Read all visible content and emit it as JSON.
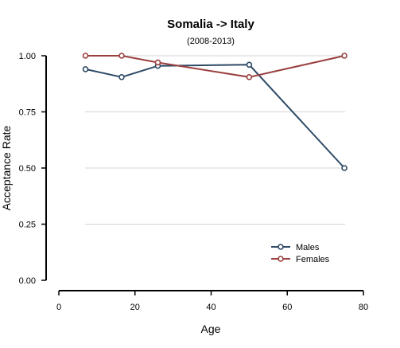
{
  "chart_data": {
    "type": "line",
    "title": "Somalia  -> Italy",
    "subtitle": "(2008-2013)",
    "xlabel": "Age",
    "ylabel": "Acceptance Rate",
    "xlim": [
      0,
      80
    ],
    "ylim": [
      0,
      1
    ],
    "xticks": [
      "0",
      "20",
      "40",
      "60",
      "80"
    ],
    "yticks": [
      "0.00",
      "0.25",
      "0.50",
      "0.75",
      "1.00"
    ],
    "grid": "horizontal",
    "legend_position": "bottom-right",
    "series": [
      {
        "name": "Males",
        "color": "#2e4a66",
        "x": [
          7,
          16.5,
          26,
          50,
          75
        ],
        "y": [
          0.94,
          0.905,
          0.955,
          0.96,
          0.5
        ]
      },
      {
        "name": "Females",
        "color": "#9b4040",
        "x": [
          7,
          16.5,
          26,
          50,
          75
        ],
        "y": [
          1.0,
          1.0,
          0.97,
          0.905,
          1.0
        ]
      }
    ]
  }
}
